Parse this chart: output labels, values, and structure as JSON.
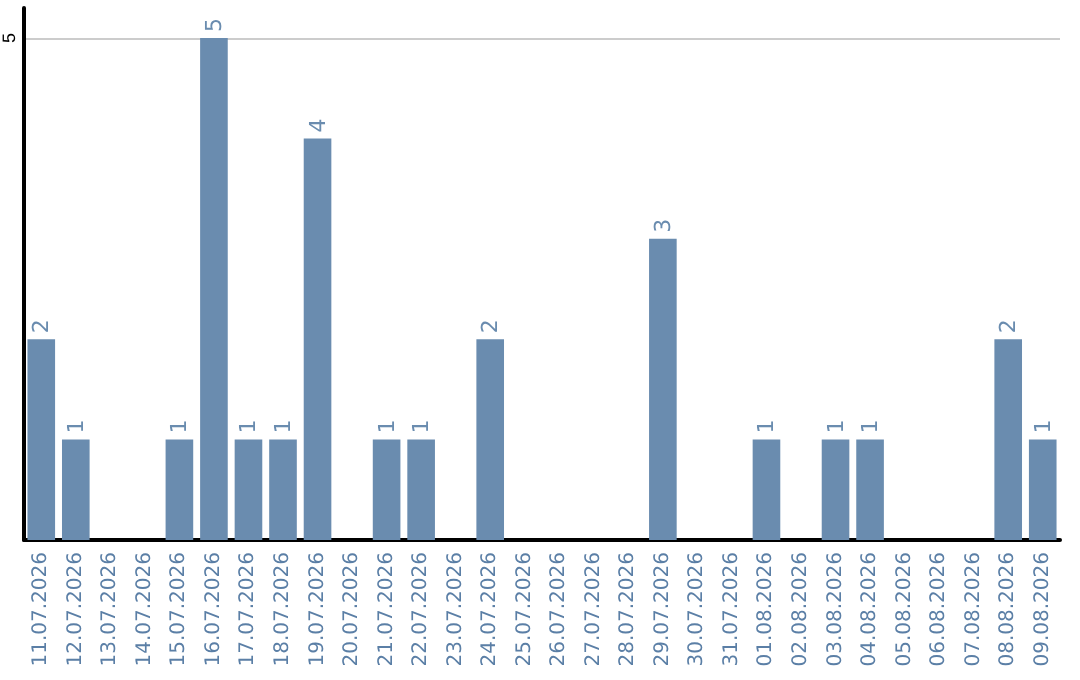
{
  "chart_data": {
    "type": "bar",
    "categories": [
      "11.07.2026",
      "12.07.2026",
      "13.07.2026",
      "14.07.2026",
      "15.07.2026",
      "16.07.2026",
      "17.07.2026",
      "18.07.2026",
      "19.07.2026",
      "20.07.2026",
      "21.07.2026",
      "22.07.2026",
      "23.07.2026",
      "24.07.2026",
      "25.07.2026",
      "26.07.2026",
      "27.07.2026",
      "28.07.2026",
      "29.07.2026",
      "30.07.2026",
      "31.07.2026",
      "01.08.2026",
      "02.08.2026",
      "03.08.2026",
      "04.08.2026",
      "05.08.2026",
      "06.08.2026",
      "07.08.2026",
      "08.08.2026",
      "09.08.2026"
    ],
    "values": [
      2,
      1,
      0,
      0,
      1,
      5,
      1,
      1,
      4,
      0,
      1,
      1,
      0,
      2,
      0,
      0,
      0,
      0,
      3,
      0,
      0,
      1,
      0,
      1,
      1,
      0,
      0,
      0,
      2,
      1
    ],
    "value_labels": [
      "2",
      "1",
      null,
      null,
      "1",
      "5",
      "1",
      "1",
      "4",
      null,
      "1",
      "1",
      null,
      "2",
      null,
      null,
      null,
      null,
      "3",
      null,
      null,
      "1",
      null,
      "1",
      "1",
      null,
      null,
      null,
      "2",
      "1"
    ],
    "color": "#6a8caf",
    "ylim": [
      0,
      5.3
    ],
    "yticks": [
      {
        "value": 0,
        "label": null
      },
      5
    ],
    "grid": "y"
  }
}
